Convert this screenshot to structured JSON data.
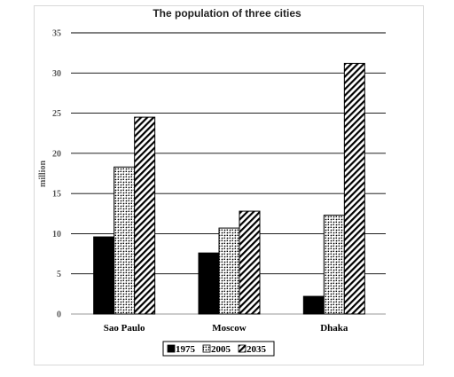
{
  "chart_data": {
    "type": "bar",
    "title": "The population of three cities",
    "ylabel": "million",
    "xlabel": "",
    "categories": [
      "Sao Paulo",
      "Moscow",
      "Dhaka"
    ],
    "series": [
      {
        "name": "1975",
        "values": [
          9.6,
          7.6,
          2.2
        ],
        "pattern": "solid"
      },
      {
        "name": "2005",
        "values": [
          18.3,
          10.7,
          12.3
        ],
        "pattern": "dots"
      },
      {
        "name": "2035",
        "values": [
          24.5,
          12.8,
          31.2
        ],
        "pattern": "stripes"
      }
    ],
    "ylim": [
      0,
      35
    ],
    "yticks": [
      "0",
      "5",
      "10",
      "15",
      "20",
      "25",
      "30",
      "35"
    ],
    "grid": true,
    "legend_position": "bottom",
    "colors": {
      "bar_fill": "#000000",
      "grid": "#000000",
      "frame": "#d9d9d9"
    }
  }
}
